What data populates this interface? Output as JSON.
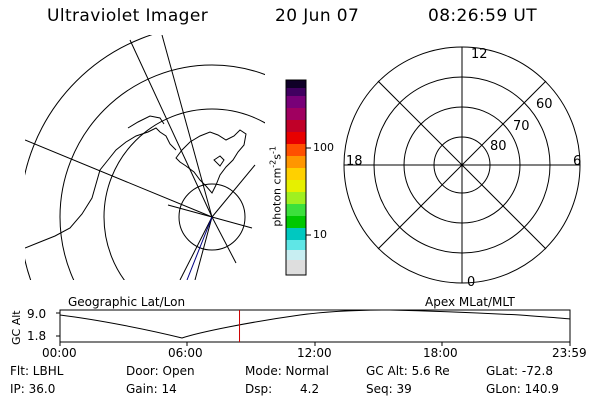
{
  "header": {
    "instrument": "Ultraviolet Imager",
    "date": "20 Jun 07",
    "time": "08:26:59 UT"
  },
  "colorbar": {
    "unit_label": "photon cm",
    "unit_exp1": "-2",
    "unit_s": "s",
    "unit_exp2": "-1",
    "tick_labels": [
      "100",
      "10"
    ]
  },
  "left_panel": {
    "label": "Geographic Lat/Lon"
  },
  "right_panel": {
    "label": "Apex MLat/MLT",
    "mlt_labels": {
      "top": "12",
      "bottom": "0",
      "left": "18",
      "right": "6"
    },
    "lat_labels": [
      "60",
      "70",
      "80"
    ]
  },
  "altitude_plot": {
    "ylabel": "GC Alt",
    "y_ticks": [
      "9.0",
      "1.8"
    ],
    "x_ticks": [
      "00:00",
      "06:00",
      "12:00",
      "18:00",
      "23:59"
    ],
    "current_time_fraction": 0.352
  },
  "status": {
    "row1": {
      "filter": "Flt: LBHL",
      "door": "Door: Open",
      "mode": "Mode: Normal",
      "gc_alt": "GC Alt: 5.6 Re",
      "glat": "GLat: -72.8"
    },
    "row2": {
      "ip": "IP: 36.0",
      "gain": "Gain: 14",
      "dsp_label": "Dsp:",
      "dsp_value": "4.2",
      "seq": "Seq: 39",
      "glon": "GLon: 140.9"
    }
  },
  "colors": {
    "plot_line": "#000000",
    "time_marker": "#cc0000",
    "track_line": "#000080"
  }
}
